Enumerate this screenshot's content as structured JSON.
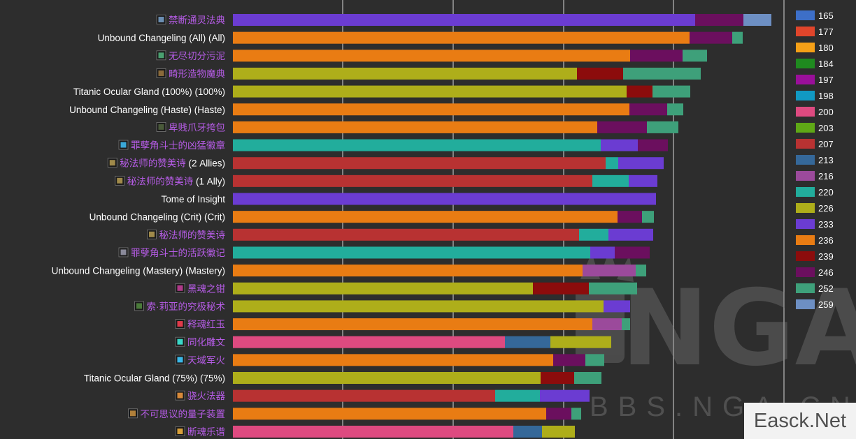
{
  "chart_data": {
    "type": "bar",
    "stacked": true,
    "orientation": "horizontal",
    "grid": true,
    "legend_position": "right",
    "series": [
      {
        "name": "165",
        "color": "#3d6fc8"
      },
      {
        "name": "177",
        "color": "#e0452b"
      },
      {
        "name": "180",
        "color": "#f5a017"
      },
      {
        "name": "184",
        "color": "#1f8a1f"
      },
      {
        "name": "197",
        "color": "#9a0f9a"
      },
      {
        "name": "198",
        "color": "#1199c2"
      },
      {
        "name": "200",
        "color": "#de4a80"
      },
      {
        "name": "203",
        "color": "#5fa816"
      },
      {
        "name": "207",
        "color": "#b83232"
      },
      {
        "name": "213",
        "color": "#356899"
      },
      {
        "name": "216",
        "color": "#9b4a9b"
      },
      {
        "name": "220",
        "color": "#22ad9c"
      },
      {
        "name": "226",
        "color": "#aeae1a"
      },
      {
        "name": "233",
        "color": "#6b3cd2"
      },
      {
        "name": "236",
        "color": "#e97c13"
      },
      {
        "name": "239",
        "color": "#8c0c0c"
      },
      {
        "name": "246",
        "color": "#6b0f5e"
      },
      {
        "name": "252",
        "color": "#3ea07a"
      },
      {
        "name": "259",
        "color": "#6d8fc3"
      }
    ],
    "items": [
      {
        "label": "禁断通灵法典",
        "style": "item",
        "icon": "necronomicon-icon",
        "icon_color": "#6c8fb3",
        "segments": [
          {
            "s": "233",
            "v": 661
          },
          {
            "s": "246",
            "v": 69
          },
          {
            "s": "259",
            "v": 40
          }
        ]
      },
      {
        "label": "Unbound Changeling (All) (All)",
        "style": "plain",
        "segments": [
          {
            "s": "236",
            "v": 653
          },
          {
            "s": "246",
            "v": 61
          },
          {
            "s": "252",
            "v": 15
          }
        ]
      },
      {
        "label": "无尽切分污泥",
        "style": "item",
        "icon": "ooze-icon",
        "icon_color": "#4aa070",
        "segments": [
          {
            "s": "236",
            "v": 568
          },
          {
            "s": "246",
            "v": 75
          },
          {
            "s": "252",
            "v": 35
          }
        ]
      },
      {
        "label": "畸形造物魔典",
        "style": "item",
        "icon": "grimoire-icon",
        "icon_color": "#8a6a3a",
        "segments": [
          {
            "s": "226",
            "v": 492
          },
          {
            "s": "239",
            "v": 66
          },
          {
            "s": "252",
            "v": 111
          }
        ]
      },
      {
        "label": "Titanic Ocular Gland (100%) (100%)",
        "style": "plain",
        "segments": [
          {
            "s": "226",
            "v": 563
          },
          {
            "s": "239",
            "v": 37
          },
          {
            "s": "252",
            "v": 54
          }
        ]
      },
      {
        "label": "Unbound Changeling (Haste) (Haste)",
        "style": "plain",
        "segments": [
          {
            "s": "236",
            "v": 567
          },
          {
            "s": "246",
            "v": 54
          },
          {
            "s": "252",
            "v": 23
          }
        ]
      },
      {
        "label": "卑贱爪牙挎包",
        "style": "item",
        "icon": "satchel-icon",
        "icon_color": "#4a5a3a",
        "segments": [
          {
            "s": "236",
            "v": 521
          },
          {
            "s": "246",
            "v": 71
          },
          {
            "s": "252",
            "v": 45
          }
        ]
      },
      {
        "label": "罪孽角斗士的凶猛徽章",
        "style": "item",
        "icon": "insignia-icon",
        "icon_color": "#3aa8d8",
        "segments": [
          {
            "s": "220",
            "v": 526
          },
          {
            "s": "233",
            "v": 53
          },
          {
            "s": "246",
            "v": 43
          }
        ]
      },
      {
        "label": "秘法师的赞美诗",
        "suffix": "(2 Allies)",
        "style": "item",
        "icon": "hymn-icon",
        "icon_color": "#a08a4a",
        "segments": [
          {
            "s": "207",
            "v": 533
          },
          {
            "s": "220",
            "v": 18
          },
          {
            "s": "233",
            "v": 65
          }
        ]
      },
      {
        "label": "秘法师的赞美诗",
        "suffix": "(1 Ally)",
        "style": "item",
        "icon": "hymn-icon",
        "icon_color": "#a08a4a",
        "segments": [
          {
            "s": "207",
            "v": 514
          },
          {
            "s": "220",
            "v": 52
          },
          {
            "s": "233",
            "v": 41
          }
        ]
      },
      {
        "label": "Tome of Insight",
        "style": "plain",
        "segments": [
          {
            "s": "233",
            "v": 605
          }
        ]
      },
      {
        "label": "Unbound Changeling (Crit) (Crit)",
        "style": "plain",
        "segments": [
          {
            "s": "236",
            "v": 550
          },
          {
            "s": "246",
            "v": 35
          },
          {
            "s": "252",
            "v": 17
          }
        ]
      },
      {
        "label": "秘法师的赞美诗",
        "style": "item",
        "icon": "hymn-icon",
        "icon_color": "#a08a4a",
        "segments": [
          {
            "s": "207",
            "v": 495
          },
          {
            "s": "220",
            "v": 42
          },
          {
            "s": "233",
            "v": 64
          }
        ]
      },
      {
        "label": "罪孽角斗士的活跃徽记",
        "style": "item",
        "icon": "badge-icon",
        "icon_color": "#8a8a9a",
        "segments": [
          {
            "s": "220",
            "v": 511
          },
          {
            "s": "233",
            "v": 35
          },
          {
            "s": "246",
            "v": 50
          }
        ]
      },
      {
        "label": "Unbound Changeling (Mastery) (Mastery)",
        "style": "plain",
        "segments": [
          {
            "s": "236",
            "v": 500
          },
          {
            "s": "216",
            "v": 76
          },
          {
            "s": "252",
            "v": 15
          }
        ]
      },
      {
        "label": "黑魂之钳",
        "style": "item",
        "icon": "pincer-icon",
        "icon_color": "#b03a8a",
        "segments": [
          {
            "s": "226",
            "v": 429
          },
          {
            "s": "239",
            "v": 80
          },
          {
            "s": "252",
            "v": 69
          }
        ]
      },
      {
        "label": "索·莉亚的究极秘术",
        "style": "item",
        "icon": "arcane-icon",
        "icon_color": "#4a7a3a",
        "segments": [
          {
            "s": "226",
            "v": 530
          },
          {
            "s": "233",
            "v": 38
          }
        ]
      },
      {
        "label": "释魂红玉",
        "style": "item",
        "icon": "ruby-icon",
        "icon_color": "#e03a4a",
        "segments": [
          {
            "s": "236",
            "v": 514
          },
          {
            "s": "216",
            "v": 42
          },
          {
            "s": "252",
            "v": 12
          }
        ]
      },
      {
        "label": "同化雕文",
        "style": "item",
        "icon": "glyph-icon",
        "icon_color": "#3ad8c8",
        "segments": [
          {
            "s": "200",
            "v": 389
          },
          {
            "s": "213",
            "v": 65
          },
          {
            "s": "226",
            "v": 87
          }
        ]
      },
      {
        "label": "天域军火",
        "style": "item",
        "icon": "munitions-icon",
        "icon_color": "#3ab8e8",
        "segments": [
          {
            "s": "236",
            "v": 458
          },
          {
            "s": "246",
            "v": 46
          },
          {
            "s": "252",
            "v": 27
          }
        ]
      },
      {
        "label": "Titanic Ocular Gland (75%) (75%)",
        "style": "plain",
        "segments": [
          {
            "s": "226",
            "v": 440
          },
          {
            "s": "239",
            "v": 48
          },
          {
            "s": "252",
            "v": 39
          }
        ]
      },
      {
        "label": "骁火法器",
        "style": "item",
        "icon": "fire-icon",
        "icon_color": "#d88a3a",
        "segments": [
          {
            "s": "207",
            "v": 375
          },
          {
            "s": "220",
            "v": 64
          },
          {
            "s": "233",
            "v": 71
          }
        ]
      },
      {
        "label": "不可思议的量子装置",
        "style": "item",
        "icon": "quantum-icon",
        "icon_color": "#b0803a",
        "segments": [
          {
            "s": "236",
            "v": 448
          },
          {
            "s": "246",
            "v": 36
          },
          {
            "s": "252",
            "v": 14
          }
        ]
      },
      {
        "label": "断魂乐谱",
        "style": "item",
        "icon": "sheet-icon",
        "icon_color": "#d8a03a",
        "segments": [
          {
            "s": "200",
            "v": 401
          },
          {
            "s": "213",
            "v": 41
          },
          {
            "s": "226",
            "v": 47
          }
        ]
      }
    ]
  },
  "colors": {
    "background": "#2d2d2d",
    "plain_label": "#ffffff",
    "item_label": "#b65ce6",
    "item_label_alt": "#3f97e6",
    "gridline": "#d8d8d8"
  },
  "watermark": {
    "logo_text": "NGA",
    "url_text": "BBS.NGA.CN",
    "corner_text": "Easck.Net"
  }
}
